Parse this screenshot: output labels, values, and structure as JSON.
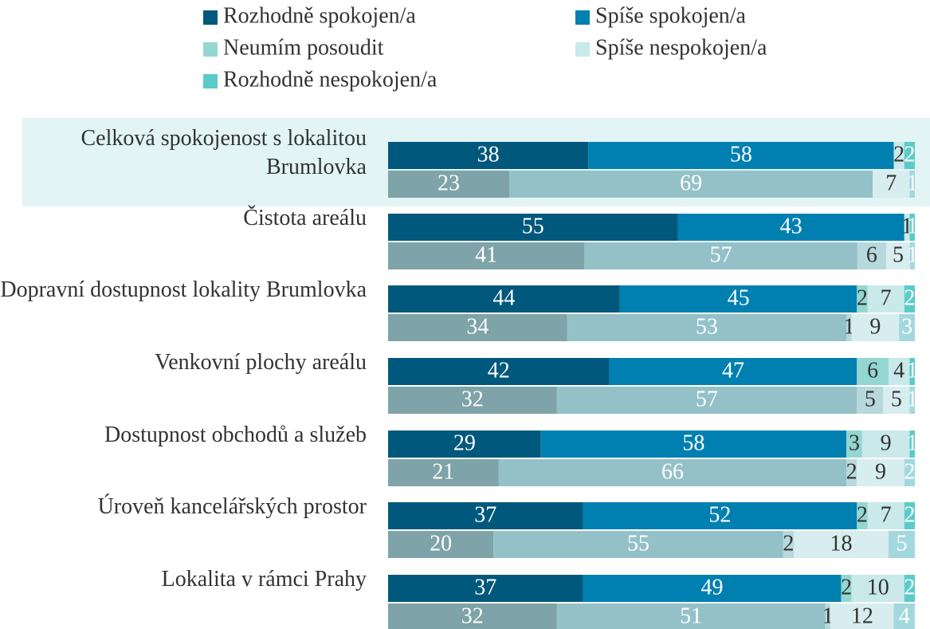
{
  "chart_data": {
    "type": "paired-stacked-bar",
    "categories": [
      "Celková spokojenost s lokalitou Brumlovka",
      "Čistota areálu",
      "Dopravní dostupnost lokality Brumlovka",
      "Venkovní plochy areálu",
      "Dostupnost obchodů a služeb",
      "Úroveň kancelářských prostor",
      "Lokalita v rámci Prahy"
    ],
    "highlight_color": "#e2f4f4",
    "series": [
      {
        "name": "Rozhodně spokojen/a",
        "color": "#00587c",
        "values": [
          38,
          55,
          44,
          42,
          29,
          37,
          37
        ]
      },
      {
        "name": "Spíše spokojen/a",
        "color": "#0080b0",
        "values": [
          58,
          43,
          45,
          47,
          58,
          52,
          49
        ]
      },
      {
        "name": "Neumím posoudit",
        "color": "#94d6d2",
        "values": [
          null,
          null,
          2,
          6,
          3,
          2,
          2
        ]
      },
      {
        "name": "Spíše nespokojen/a",
        "color": "#c9e9eb",
        "values": [
          2,
          1,
          7,
          4,
          9,
          7,
          10
        ]
      },
      {
        "name": "Rozhodně nespokojen/a",
        "color": "#5ccbc7",
        "values": [
          2,
          1,
          2,
          1,
          1,
          2,
          2
        ]
      }
    ],
    "comparison_series": [
      {
        "color": "#7ea3a8",
        "values": [
          23,
          41,
          34,
          32,
          21,
          20,
          32
        ]
      },
      {
        "color": "#94c1c8",
        "values": [
          69,
          57,
          53,
          57,
          66,
          55,
          51
        ]
      },
      {
        "color": "#b7d8dc",
        "values": [
          null,
          6,
          1,
          5,
          2,
          2,
          1
        ]
      },
      {
        "color": "#d8edef",
        "values": [
          7,
          5,
          9,
          5,
          9,
          18,
          12
        ]
      },
      {
        "color": "#a3d8df",
        "values": [
          1,
          1,
          3,
          1,
          2,
          5,
          4
        ]
      }
    ]
  }
}
